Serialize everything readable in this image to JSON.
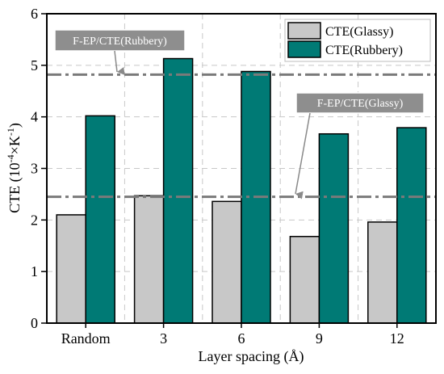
{
  "chart_data": {
    "type": "bar",
    "categories": [
      "Random",
      "3",
      "6",
      "9",
      "12"
    ],
    "series": [
      {
        "name": "CTE(Glassy)",
        "color": "#c8c8c8",
        "values": [
          2.1,
          2.47,
          2.36,
          1.68,
          1.96
        ]
      },
      {
        "name": "CTE(Rubbery)",
        "color": "#007a75",
        "values": [
          4.02,
          5.13,
          4.88,
          3.67,
          3.79
        ]
      }
    ],
    "reference_lines": [
      {
        "label": "F-EP/CTE(Rubbery)",
        "value": 4.82
      },
      {
        "label": "F-EP/CTE(Glassy)",
        "value": 2.45
      }
    ],
    "xlabel": "Layer spacing (Å)",
    "ylabel": {
      "base": "CTE (10",
      "exp1": "-4",
      "mid": "×K",
      "exp2": "-1",
      "end": ")"
    },
    "ylim": [
      0,
      6
    ],
    "yticks": [
      "0",
      "1",
      "2",
      "3",
      "4",
      "5",
      "6"
    ],
    "grid": true,
    "legend": "top-right"
  }
}
